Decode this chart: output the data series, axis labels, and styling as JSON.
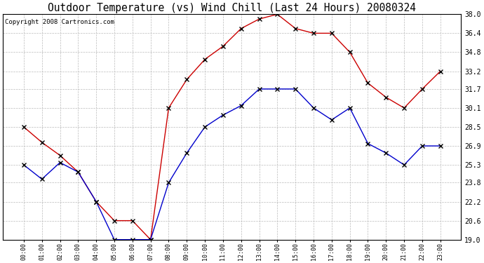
{
  "title": "Outdoor Temperature (vs) Wind Chill (Last 24 Hours) 20080324",
  "copyright": "Copyright 2008 Cartronics.com",
  "x_labels": [
    "00:00",
    "01:00",
    "02:00",
    "03:00",
    "04:00",
    "05:00",
    "06:00",
    "07:00",
    "08:00",
    "09:00",
    "10:00",
    "11:00",
    "12:00",
    "13:00",
    "14:00",
    "15:00",
    "16:00",
    "17:00",
    "18:00",
    "19:00",
    "20:00",
    "21:00",
    "22:00",
    "23:00"
  ],
  "temp_red": [
    28.5,
    27.2,
    26.1,
    24.7,
    22.2,
    20.6,
    20.6,
    19.0,
    30.1,
    32.5,
    34.2,
    35.3,
    36.8,
    37.6,
    38.0,
    36.8,
    36.4,
    36.4,
    34.8,
    32.2,
    31.0,
    30.1,
    31.7,
    33.2
  ],
  "temp_blue": [
    25.3,
    24.1,
    25.5,
    24.7,
    22.2,
    19.0,
    19.0,
    19.0,
    23.8,
    26.3,
    28.5,
    29.5,
    30.3,
    31.7,
    31.7,
    31.7,
    30.1,
    29.1,
    30.1,
    27.1,
    26.3,
    25.3,
    26.9,
    26.9
  ],
  "ylim": [
    19.0,
    38.0
  ],
  "yticks": [
    19.0,
    20.6,
    22.2,
    23.8,
    25.3,
    26.9,
    28.5,
    30.1,
    31.7,
    33.2,
    34.8,
    36.4,
    38.0
  ],
  "red_color": "#cc0000",
  "blue_color": "#0000cc",
  "bg_color": "#ffffff",
  "grid_color": "#bbbbbb",
  "title_fontsize": 10.5,
  "copyright_fontsize": 6.5,
  "tick_fontsize": 7.0,
  "xtick_fontsize": 6.0
}
